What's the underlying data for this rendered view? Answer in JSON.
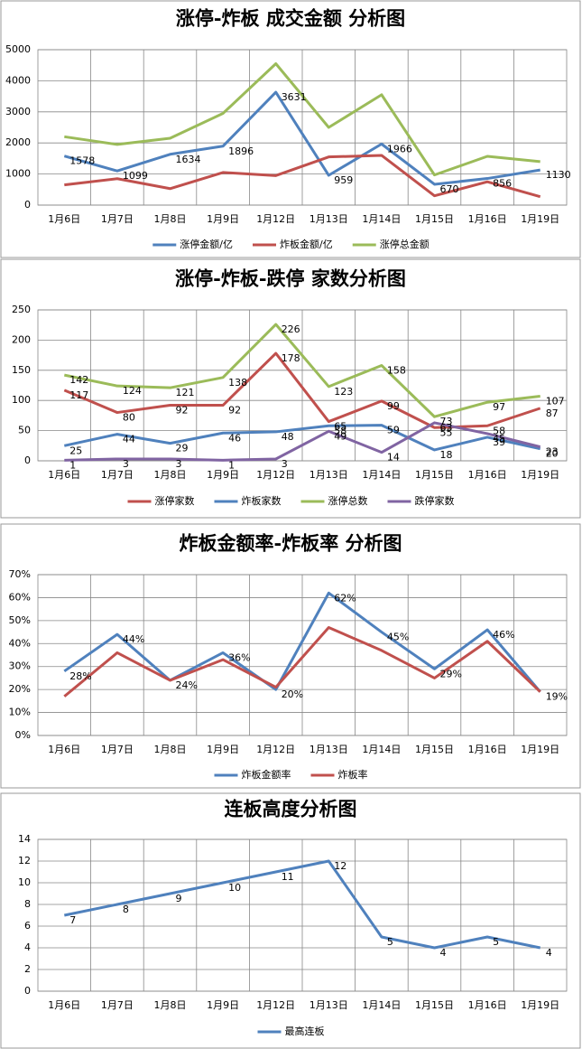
{
  "chart_data": [
    {
      "type": "line",
      "title": "涨停-炸板 成交金额 分析图",
      "categories": [
        "1月6日",
        "1月7日",
        "1月8日",
        "1月9日",
        "1月12日",
        "1月13日",
        "1月14日",
        "1月15日",
        "1月16日",
        "1月19日"
      ],
      "ylim": [
        0,
        5000
      ],
      "yticks": [
        0,
        1000,
        2000,
        3000,
        4000,
        5000
      ],
      "grid": true,
      "legend": "bottom",
      "series": [
        {
          "name": "涨停金额/亿",
          "color": "#4f81bd",
          "data_labels": true,
          "values": [
            1578,
            1099,
            1634,
            1896,
            3631,
            959,
            1966,
            670,
            856,
            1130
          ]
        },
        {
          "name": "炸板金额/亿",
          "color": "#c0504d",
          "data_labels": false,
          "values": [
            650,
            850,
            530,
            1050,
            950,
            1550,
            1600,
            300,
            750,
            270
          ]
        },
        {
          "name": "涨停总金额",
          "color": "#9bbb59",
          "data_labels": false,
          "values": [
            2200,
            1950,
            2150,
            2950,
            4550,
            2500,
            3550,
            970,
            1570,
            1400
          ]
        }
      ]
    },
    {
      "type": "line",
      "title": "涨停-炸板-跌停 家数分析图",
      "categories": [
        "1月6日",
        "1月7日",
        "1月8日",
        "1月9日",
        "1月12日",
        "1月13日",
        "1月14日",
        "1月15日",
        "1月16日",
        "1月19日"
      ],
      "ylim": [
        0,
        250
      ],
      "yticks": [
        0,
        50,
        100,
        150,
        200,
        250
      ],
      "grid": true,
      "legend": "bottom",
      "series": [
        {
          "name": "涨停家数",
          "color": "#c0504d",
          "data_labels": true,
          "values": [
            117,
            80,
            92,
            92,
            178,
            65,
            99,
            55,
            58,
            87
          ]
        },
        {
          "name": "炸板家数",
          "color": "#4f81bd",
          "data_labels": true,
          "values": [
            25,
            44,
            29,
            46,
            48,
            58,
            59,
            18,
            39,
            20
          ]
        },
        {
          "name": "涨停总数",
          "color": "#9bbb59",
          "data_labels": true,
          "values": [
            142,
            124,
            121,
            138,
            226,
            123,
            158,
            73,
            97,
            107
          ]
        },
        {
          "name": "跌停家数",
          "color": "#8064a2",
          "data_labels": true,
          "values": [
            1,
            3,
            3,
            1,
            3,
            49,
            14,
            63,
            45,
            23
          ]
        }
      ]
    },
    {
      "type": "line",
      "title": "炸板金额率-炸板率 分析图",
      "categories": [
        "1月6日",
        "1月7日",
        "1月8日",
        "1月9日",
        "1月12日",
        "1月13日",
        "1月14日",
        "1月15日",
        "1月16日",
        "1月19日"
      ],
      "ylim": [
        0,
        70
      ],
      "yticks": [
        {
          "value": 0,
          "label": "0%"
        },
        {
          "value": 10,
          "label": "10%"
        },
        {
          "value": 20,
          "label": "20%"
        },
        {
          "value": 30,
          "label": "30%"
        },
        {
          "value": 40,
          "label": "40%"
        },
        {
          "value": 50,
          "label": "50%"
        },
        {
          "value": 60,
          "label": "60%"
        },
        {
          "value": 70,
          "label": "70%"
        }
      ],
      "grid": true,
      "legend": "bottom",
      "series": [
        {
          "name": "炸板金额率",
          "color": "#4f81bd",
          "data_labels": true,
          "values": [
            28,
            44,
            24,
            36,
            20,
            62,
            45,
            29,
            46,
            19
          ],
          "value_labels": [
            "28%",
            "44%",
            "24%",
            "36%",
            "20%",
            "62%",
            "45%",
            "29%",
            "46%",
            "19%"
          ]
        },
        {
          "name": "炸板率",
          "color": "#c0504d",
          "data_labels": false,
          "values": [
            17,
            36,
            24,
            33,
            21,
            47,
            37,
            25,
            41,
            19
          ]
        }
      ]
    },
    {
      "type": "line",
      "title": "连板高度分析图",
      "categories": [
        "1月6日",
        "1月7日",
        "1月8日",
        "1月9日",
        "1月12日",
        "1月13日",
        "1月14日",
        "1月15日",
        "1月16日",
        "1月19日"
      ],
      "ylim": [
        0,
        14
      ],
      "yticks": [
        0,
        2,
        4,
        6,
        8,
        10,
        12,
        14
      ],
      "grid": true,
      "legend": "bottom",
      "series": [
        {
          "name": "最高连板",
          "color": "#4f81bd",
          "data_labels": true,
          "values": [
            7,
            8,
            9,
            10,
            11,
            12,
            5,
            4,
            5,
            4
          ]
        }
      ]
    }
  ]
}
